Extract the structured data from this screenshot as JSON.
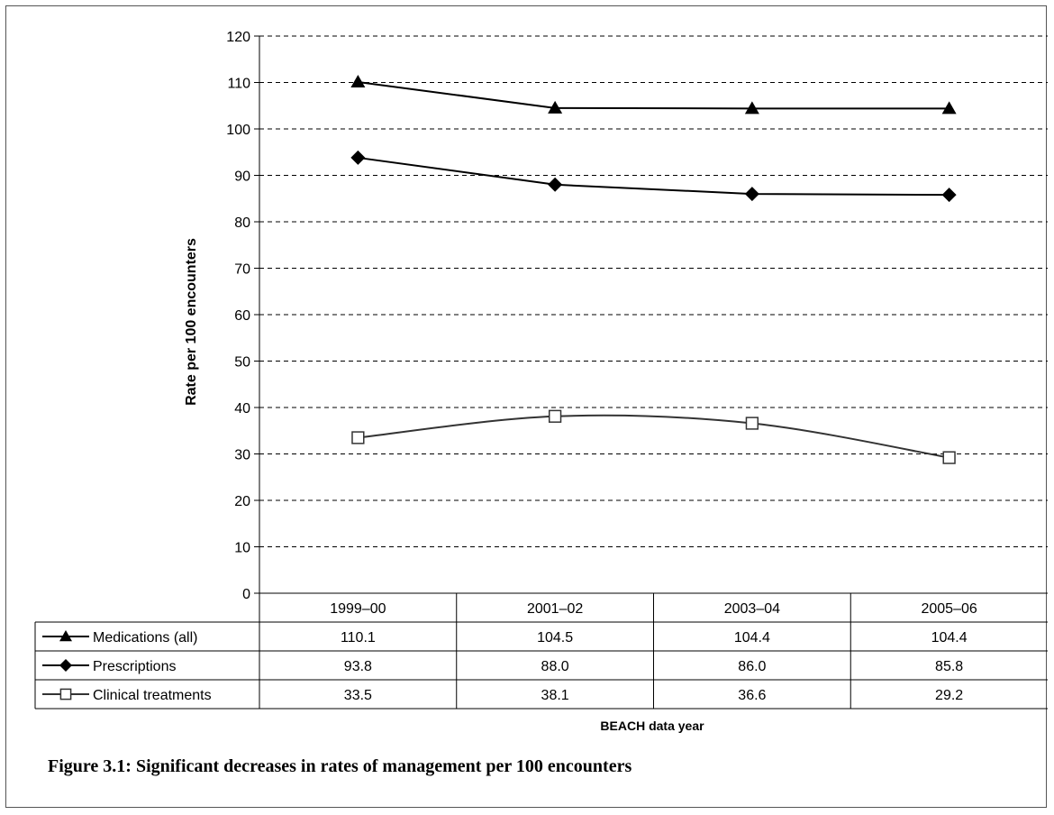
{
  "figure": {
    "caption": "Figure 3.1: Significant decreases in rates of management per 100 encounters"
  },
  "chart_data": {
    "type": "line",
    "categories": [
      "1999–00",
      "2001–02",
      "2003–04",
      "2005–06"
    ],
    "ylabel": "Rate per 100 encounters",
    "xlabel": "BEACH data year",
    "ylim": [
      0,
      120
    ],
    "yticks": [
      0,
      10,
      20,
      30,
      40,
      50,
      60,
      70,
      80,
      90,
      100,
      110,
      120
    ],
    "grid": "horizontal-dashed",
    "legend": "data-table-below",
    "series": [
      {
        "name": "Medications (all)",
        "marker": "filled-triangle",
        "smooth": false,
        "color": "#000000",
        "values": [
          110.1,
          104.5,
          104.4,
          104.4
        ],
        "labels": [
          "110.1",
          "104.5",
          "104.4",
          "104.4"
        ]
      },
      {
        "name": "Prescriptions",
        "marker": "filled-diamond",
        "smooth": false,
        "color": "#000000",
        "values": [
          93.8,
          88.0,
          86.0,
          85.8
        ],
        "labels": [
          "93.8",
          "88.0",
          "86.0",
          "85.8"
        ]
      },
      {
        "name": "Clinical treatments",
        "marker": "open-square",
        "smooth": true,
        "color": "#333333",
        "values": [
          33.5,
          38.1,
          36.6,
          29.2
        ],
        "labels": [
          "33.5",
          "38.1",
          "36.6",
          "29.2"
        ]
      }
    ]
  }
}
